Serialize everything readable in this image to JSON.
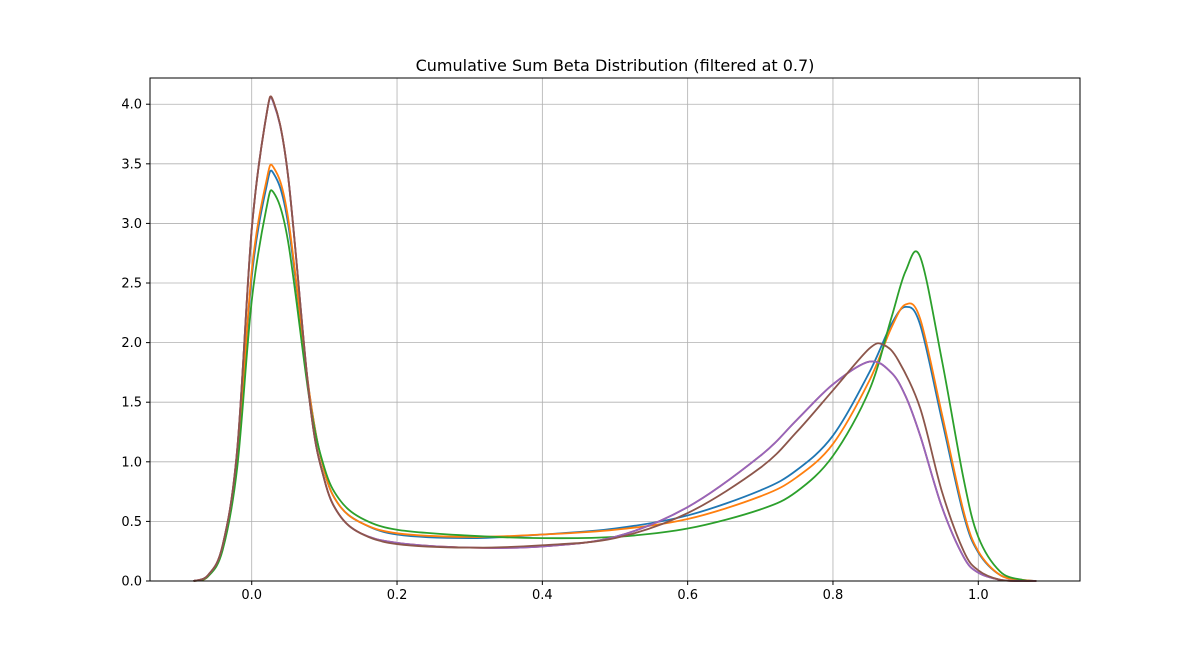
{
  "chart_data": {
    "type": "line",
    "title": "Cumulative Sum Beta Distribution (filtered at 0.7)",
    "xlabel": "",
    "ylabel": "",
    "xlim": [
      -0.14,
      1.14
    ],
    "ylim": [
      0,
      4.22
    ],
    "xticks": [
      0.0,
      0.2,
      0.4,
      0.6,
      0.8,
      1.0
    ],
    "xtick_labels": [
      "0.0",
      "0.2",
      "0.4",
      "0.6",
      "0.8",
      "1.0"
    ],
    "yticks": [
      0.0,
      0.5,
      1.0,
      1.5,
      2.0,
      2.5,
      3.0,
      3.5,
      4.0
    ],
    "ytick_labels": [
      "0.0",
      "0.5",
      "1.0",
      "1.5",
      "2.0",
      "2.5",
      "3.0",
      "3.5",
      "4.0"
    ],
    "grid": true,
    "series": [
      {
        "color": "#1f77b4",
        "x": [
          -0.08,
          -0.06,
          -0.04,
          -0.02,
          0.0,
          0.02,
          0.03,
          0.05,
          0.08,
          0.1,
          0.12,
          0.15,
          0.2,
          0.3,
          0.4,
          0.5,
          0.6,
          0.7,
          0.75,
          0.8,
          0.85,
          0.88,
          0.9,
          0.92,
          0.95,
          0.98,
          1.0,
          1.03,
          1.06,
          1.08
        ],
        "y": [
          0.0,
          0.04,
          0.28,
          1.0,
          2.55,
          3.3,
          3.42,
          3.0,
          1.55,
          0.92,
          0.64,
          0.49,
          0.39,
          0.36,
          0.39,
          0.44,
          0.55,
          0.76,
          0.93,
          1.22,
          1.75,
          2.15,
          2.3,
          2.15,
          1.35,
          0.55,
          0.24,
          0.05,
          0.01,
          0.0
        ]
      },
      {
        "color": "#ff7f0e",
        "x": [
          -0.08,
          -0.06,
          -0.04,
          -0.02,
          0.0,
          0.02,
          0.03,
          0.05,
          0.08,
          0.1,
          0.12,
          0.15,
          0.2,
          0.3,
          0.4,
          0.5,
          0.6,
          0.7,
          0.75,
          0.8,
          0.85,
          0.88,
          0.9,
          0.92,
          0.95,
          0.98,
          1.0,
          1.03,
          1.06,
          1.08
        ],
        "y": [
          0.0,
          0.04,
          0.28,
          1.0,
          2.6,
          3.35,
          3.47,
          3.05,
          1.55,
          0.92,
          0.64,
          0.49,
          0.4,
          0.37,
          0.39,
          0.43,
          0.52,
          0.71,
          0.87,
          1.15,
          1.68,
          2.12,
          2.32,
          2.2,
          1.4,
          0.58,
          0.25,
          0.05,
          0.01,
          0.0
        ]
      },
      {
        "color": "#2ca02c",
        "x": [
          -0.08,
          -0.06,
          -0.04,
          -0.02,
          0.0,
          0.02,
          0.03,
          0.05,
          0.08,
          0.1,
          0.12,
          0.15,
          0.2,
          0.3,
          0.4,
          0.5,
          0.6,
          0.7,
          0.75,
          0.8,
          0.85,
          0.88,
          0.9,
          0.92,
          0.95,
          0.98,
          1.0,
          1.03,
          1.06,
          1.08
        ],
        "y": [
          0.0,
          0.04,
          0.26,
          0.95,
          2.35,
          3.12,
          3.26,
          2.85,
          1.5,
          0.95,
          0.69,
          0.53,
          0.43,
          0.38,
          0.36,
          0.37,
          0.44,
          0.6,
          0.75,
          1.05,
          1.6,
          2.2,
          2.6,
          2.72,
          1.85,
          0.85,
          0.37,
          0.08,
          0.01,
          0.0
        ]
      },
      {
        "color": "#d62728",
        "x": [
          -0.08,
          -0.06,
          -0.04,
          -0.02,
          0.0,
          0.02,
          0.03,
          0.05,
          0.08,
          0.1,
          0.12,
          0.15,
          0.2,
          0.3,
          0.4,
          0.5,
          0.6,
          0.7,
          0.75,
          0.8,
          0.85,
          0.88,
          0.9,
          0.92,
          0.95,
          0.98,
          1.0,
          1.03,
          1.06,
          1.08
        ],
        "y": [
          0.0,
          0.05,
          0.3,
          1.1,
          2.95,
          3.9,
          4.02,
          3.4,
          1.5,
          0.85,
          0.56,
          0.4,
          0.32,
          0.28,
          0.29,
          0.37,
          0.62,
          1.05,
          1.35,
          1.65,
          1.84,
          1.75,
          1.55,
          1.22,
          0.62,
          0.2,
          0.07,
          0.01,
          0.0,
          0.0
        ]
      },
      {
        "color": "#9467bd",
        "x": [
          -0.08,
          -0.06,
          -0.04,
          -0.02,
          0.0,
          0.02,
          0.03,
          0.05,
          0.08,
          0.1,
          0.12,
          0.15,
          0.2,
          0.3,
          0.4,
          0.5,
          0.6,
          0.7,
          0.75,
          0.8,
          0.85,
          0.88,
          0.9,
          0.92,
          0.95,
          0.98,
          1.0,
          1.03,
          1.06,
          1.08
        ],
        "y": [
          0.0,
          0.05,
          0.3,
          1.1,
          2.95,
          3.9,
          4.01,
          3.4,
          1.5,
          0.85,
          0.56,
          0.4,
          0.32,
          0.28,
          0.29,
          0.37,
          0.62,
          1.05,
          1.35,
          1.65,
          1.84,
          1.75,
          1.55,
          1.22,
          0.62,
          0.2,
          0.07,
          0.01,
          0.0,
          0.0
        ]
      },
      {
        "color": "#8c564b",
        "x": [
          -0.08,
          -0.06,
          -0.04,
          -0.02,
          0.0,
          0.02,
          0.03,
          0.05,
          0.08,
          0.1,
          0.12,
          0.15,
          0.2,
          0.3,
          0.4,
          0.5,
          0.6,
          0.7,
          0.75,
          0.8,
          0.85,
          0.87,
          0.89,
          0.92,
          0.95,
          0.98,
          1.0,
          1.03,
          1.06,
          1.08
        ],
        "y": [
          0.0,
          0.05,
          0.3,
          1.1,
          2.95,
          3.9,
          4.02,
          3.4,
          1.5,
          0.85,
          0.56,
          0.4,
          0.31,
          0.28,
          0.3,
          0.36,
          0.57,
          0.95,
          1.25,
          1.6,
          1.95,
          1.98,
          1.85,
          1.45,
          0.75,
          0.25,
          0.09,
          0.01,
          0.0,
          0.0
        ]
      }
    ]
  }
}
